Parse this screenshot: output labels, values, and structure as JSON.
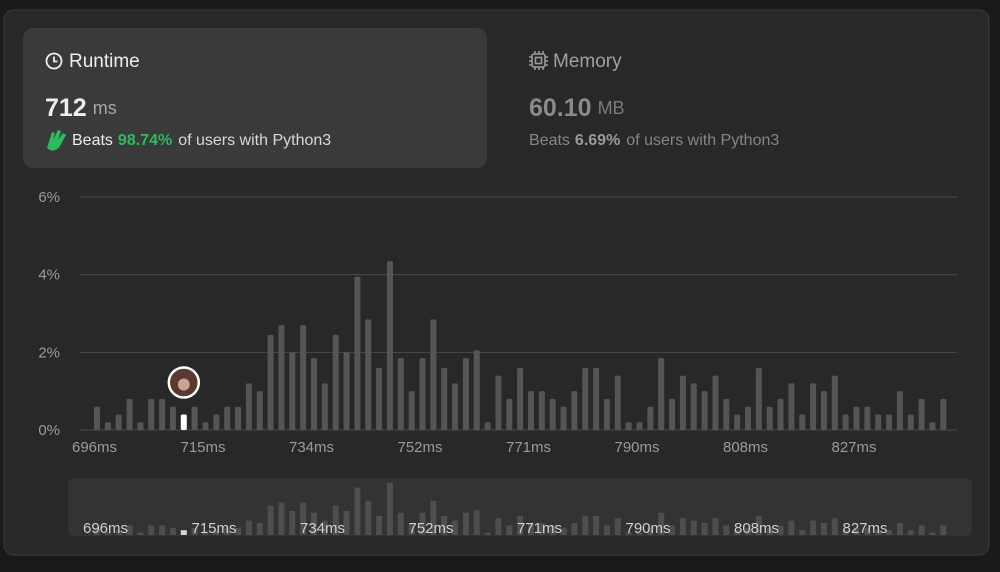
{
  "runtime_card": {
    "title": "Runtime",
    "value": "712",
    "unit": "ms",
    "beats_prefix": "Beats",
    "beats_value": "98.74%",
    "beats_suffix": "of users with Python3"
  },
  "memory_card": {
    "title": "Memory",
    "value": "60.10",
    "unit": "MB",
    "beats_prefix": "Beats",
    "beats_value": "6.69%",
    "beats_suffix": "of users with Python3"
  },
  "chart_data": {
    "type": "bar",
    "categories": [
      "696ms",
      null,
      null,
      null,
      null,
      null,
      null,
      null,
      null,
      null,
      "715ms",
      null,
      null,
      null,
      null,
      null,
      null,
      null,
      null,
      null,
      "734ms",
      null,
      null,
      null,
      null,
      null,
      null,
      null,
      null,
      null,
      "752ms",
      null,
      null,
      null,
      null,
      null,
      null,
      null,
      null,
      null,
      "771ms",
      null,
      null,
      null,
      null,
      null,
      null,
      null,
      null,
      null,
      "790ms",
      null,
      null,
      null,
      null,
      null,
      null,
      null,
      null,
      null,
      "808ms",
      null,
      null,
      null,
      null,
      null,
      null,
      null,
      null,
      null,
      "827ms",
      null,
      null,
      null,
      null,
      null,
      null,
      null,
      null
    ],
    "values": [
      0.6,
      0.2,
      0.4,
      0.8,
      0.2,
      0.8,
      0.8,
      0.6,
      0.4,
      0.6,
      0.2,
      0.4,
      0.6,
      0.6,
      1.2,
      1.0,
      2.45,
      2.7,
      2.0,
      2.7,
      1.85,
      1.2,
      2.45,
      2.0,
      3.95,
      2.85,
      1.6,
      4.35,
      1.85,
      1.0,
      1.85,
      2.85,
      1.6,
      1.2,
      1.85,
      2.05,
      0.2,
      1.4,
      0.8,
      1.6,
      1.0,
      1.0,
      0.8,
      0.6,
      1.0,
      1.6,
      1.6,
      0.8,
      1.4,
      0.2,
      0.2,
      0.6,
      1.85,
      0.8,
      1.4,
      1.2,
      1.0,
      1.4,
      0.8,
      0.4,
      0.6,
      1.6,
      0.6,
      0.8,
      1.2,
      0.4,
      1.2,
      1.0,
      1.4,
      0.4,
      0.6,
      0.6,
      0.4,
      0.4,
      1.0,
      0.4,
      0.8,
      0.2,
      0.8
    ],
    "color": "#555555",
    "highlight_index": 8,
    "highlight_color": "#ffffff",
    "ylim": [
      0,
      6
    ],
    "yticks": [
      {
        "value": 0,
        "label": "0%"
      },
      {
        "value": 2,
        "label": "2%"
      },
      {
        "value": 4,
        "label": "4%"
      },
      {
        "value": 6,
        "label": "6%"
      }
    ],
    "grid": true
  }
}
